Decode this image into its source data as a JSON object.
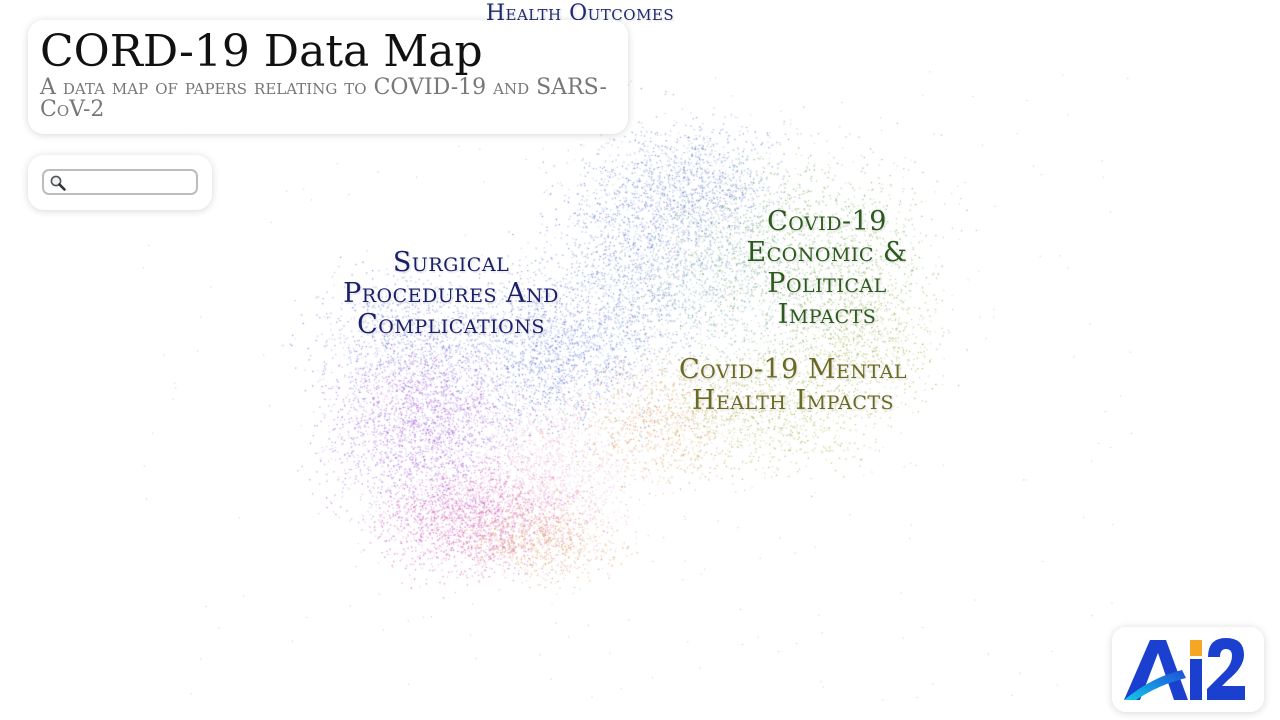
{
  "title": "CORD-19 Data Map",
  "subtitle": "A data map of papers relating to COVID-19 and SARS-CoV-2",
  "search": {
    "value": "",
    "placeholder": ""
  },
  "logo": {
    "text": "AI2",
    "name": "ai2-logo"
  },
  "map_labels": [
    {
      "text": "Health Outcomes",
      "color": "#1f2a6e"
    },
    {
      "text": "Surgical\nProcedures And\nComplications",
      "color": "#1a1f6a"
    },
    {
      "text": "Covid-19\nEconomic &\nPolitical\nImpacts",
      "color": "#2c5a1e"
    },
    {
      "text": "Covid-19 Mental\nHealth Impacts",
      "color": "#6b6a22"
    }
  ],
  "colors": {
    "purple": "#9b59d6",
    "magenta": "#cc4fb3",
    "blue": "#5a6fd0",
    "teal": "#6b9aa0",
    "green": "#6da54a",
    "olive": "#9aa83a",
    "orange": "#d98c4a",
    "pink": "#e6a7c8"
  }
}
